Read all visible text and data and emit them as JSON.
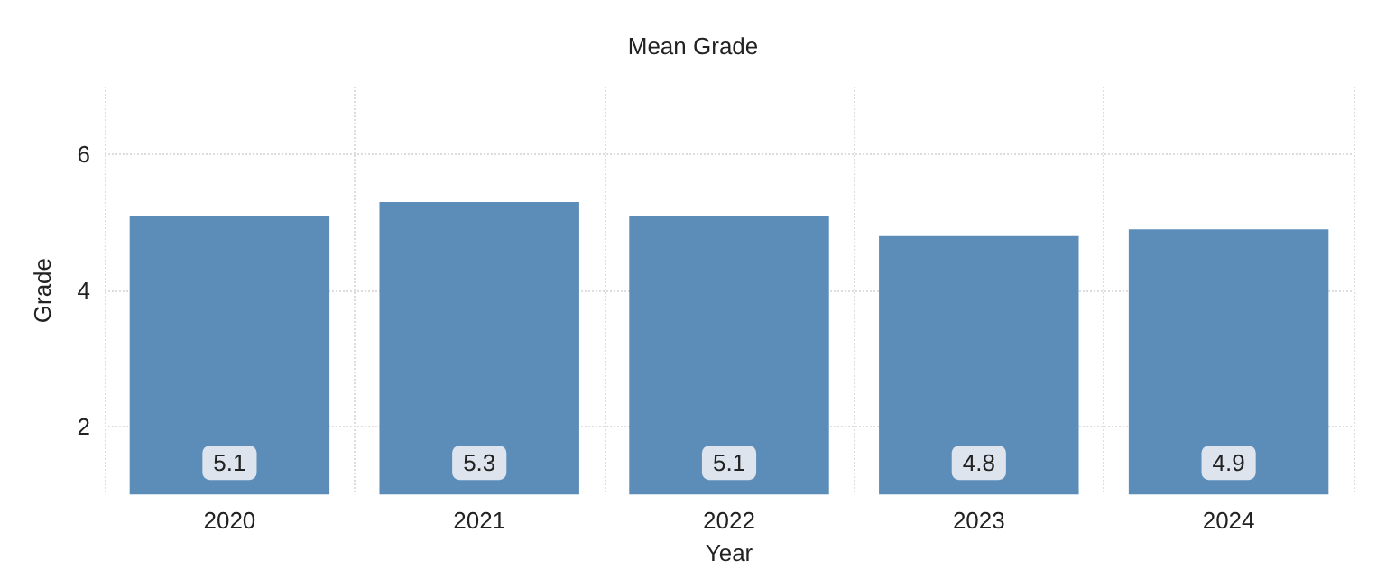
{
  "chart_data": {
    "type": "bar",
    "title": "Mean Grade",
    "xlabel": "Year",
    "ylabel": "Grade",
    "categories": [
      "2020",
      "2021",
      "2022",
      "2023",
      "2024"
    ],
    "values": [
      5.1,
      5.3,
      5.1,
      4.8,
      4.9
    ],
    "color": "#5b8db8",
    "ylim": [
      1,
      7
    ],
    "yticks": [
      2,
      4,
      6
    ],
    "grid": true,
    "data_labels": true
  }
}
